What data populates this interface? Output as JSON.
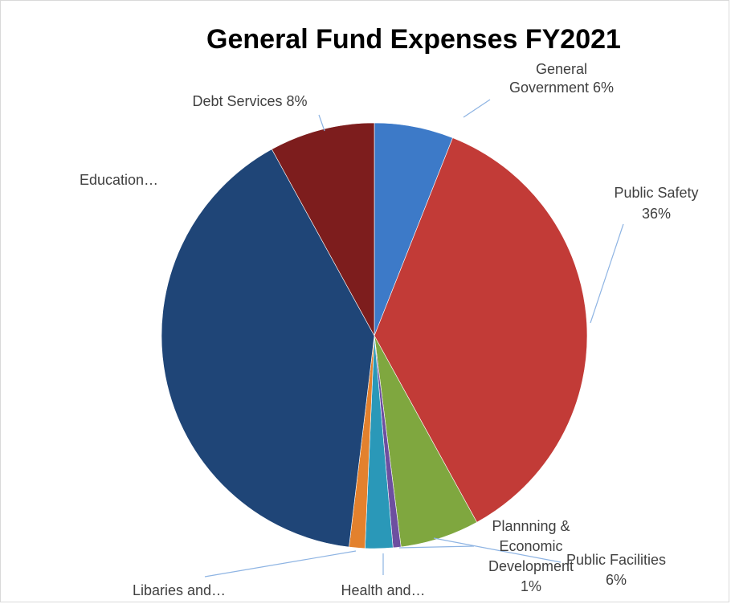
{
  "chart_data": {
    "type": "pie",
    "title": "General Fund Expenses FY2021",
    "slices": [
      {
        "name": "General Government",
        "value": 6,
        "label_lines": [
          "General",
          "Government 6%"
        ],
        "color": "#3d7ac8"
      },
      {
        "name": "Public Safety",
        "value": 36,
        "label_lines": [
          "Public Safety",
          "36%"
        ],
        "color": "#c23b37"
      },
      {
        "name": "Public Facilities",
        "value": 6,
        "label_lines": [
          "Public Facilities",
          "6%"
        ],
        "color": "#7fa73f"
      },
      {
        "name": "Plannning & Economic Development",
        "value": 0.6,
        "label_lines": [
          "Plannning &",
          "Economic",
          "Development",
          "1%"
        ],
        "color": "#6d4fa0"
      },
      {
        "name": "Health and…",
        "value": 2.1,
        "label_lines": [
          "Health and…"
        ],
        "color": "#2a98b8"
      },
      {
        "name": "Libaries and…",
        "value": 1.2,
        "label_lines": [
          "Libaries and…"
        ],
        "color": "#e3812d"
      },
      {
        "name": "Education…",
        "value": 40.1,
        "label_lines": [
          "Education…"
        ],
        "color": "#1f4577"
      },
      {
        "name": "Debt Services",
        "value": 8,
        "label_lines": [
          "Debt Services 8%"
        ],
        "color": "#7d1d1d"
      }
    ]
  }
}
